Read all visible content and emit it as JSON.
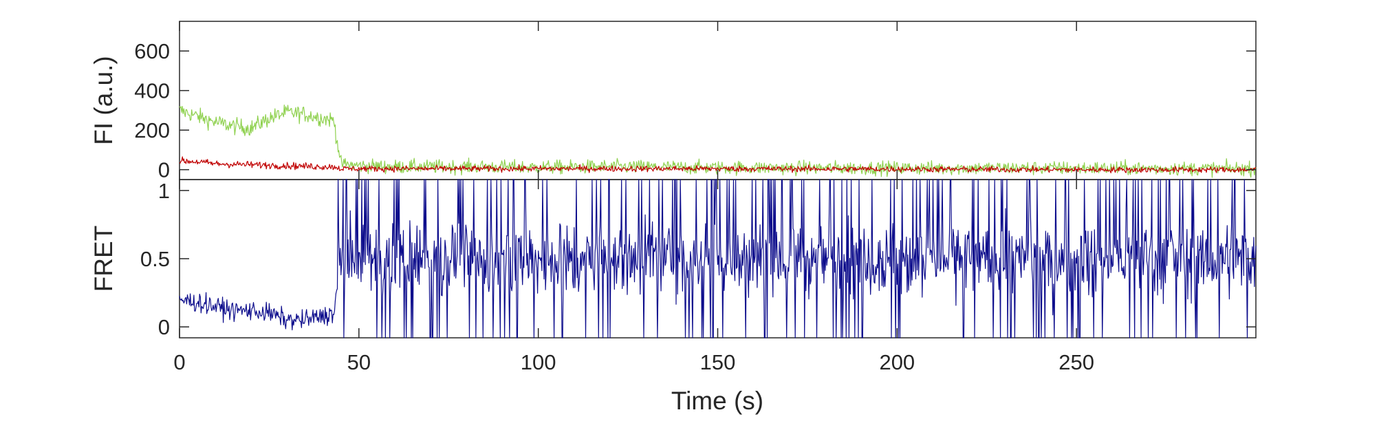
{
  "chart_data": [
    {
      "type": "line",
      "title": "",
      "xlabel": "",
      "ylabel": "FI (a.u.)",
      "xlim": [
        0,
        300
      ],
      "ylim": [
        -50,
        750
      ],
      "xticks": [
        0,
        50,
        100,
        150,
        200,
        250
      ],
      "yticks": [
        0,
        200,
        400,
        600
      ],
      "ytick_labels": [
        "0",
        "200",
        "400",
        "600"
      ],
      "grid": false,
      "legend": "none",
      "series": [
        {
          "color": "#8fd14f",
          "x": [
            0,
            5,
            10,
            15,
            20,
            25,
            30,
            35,
            40,
            43,
            45,
            50,
            60,
            80,
            100,
            120,
            150,
            200,
            250,
            300
          ],
          "y": [
            300,
            270,
            240,
            220,
            210,
            260,
            290,
            280,
            260,
            250,
            30,
            20,
            15,
            15,
            12,
            15,
            10,
            8,
            8,
            5
          ]
        },
        {
          "color": "#c00000",
          "x": [
            0,
            5,
            10,
            20,
            30,
            40,
            43,
            45,
            50,
            100,
            150,
            200,
            250,
            300
          ],
          "y": [
            45,
            40,
            30,
            25,
            20,
            15,
            15,
            5,
            5,
            5,
            5,
            3,
            0,
            0
          ]
        }
      ]
    },
    {
      "type": "line",
      "title": "",
      "xlabel": "Time (s)",
      "ylabel": "FRET",
      "xlim": [
        0,
        300
      ],
      "ylim": [
        -0.08,
        1.08
      ],
      "xticks": [
        0,
        50,
        100,
        150,
        200,
        250
      ],
      "xtick_labels": [
        "0",
        "50",
        "100",
        "150",
        "200",
        "250"
      ],
      "yticks": [
        0,
        0.5,
        1
      ],
      "ytick_labels": [
        "0",
        "0.5",
        "1"
      ],
      "grid": false,
      "legend": "none",
      "series": [
        {
          "color": "#0d0d8c",
          "x": [
            0,
            5,
            10,
            15,
            20,
            25,
            30,
            35,
            40,
            43,
            45,
            50,
            100,
            150,
            200,
            250,
            300
          ],
          "y": [
            0.2,
            0.18,
            0.15,
            0.12,
            0.12,
            0.1,
            0.05,
            0.05,
            0.08,
            0.1,
            0.5,
            0.5,
            0.5,
            0.5,
            0.5,
            0.5,
            0.5
          ]
        }
      ]
    }
  ]
}
